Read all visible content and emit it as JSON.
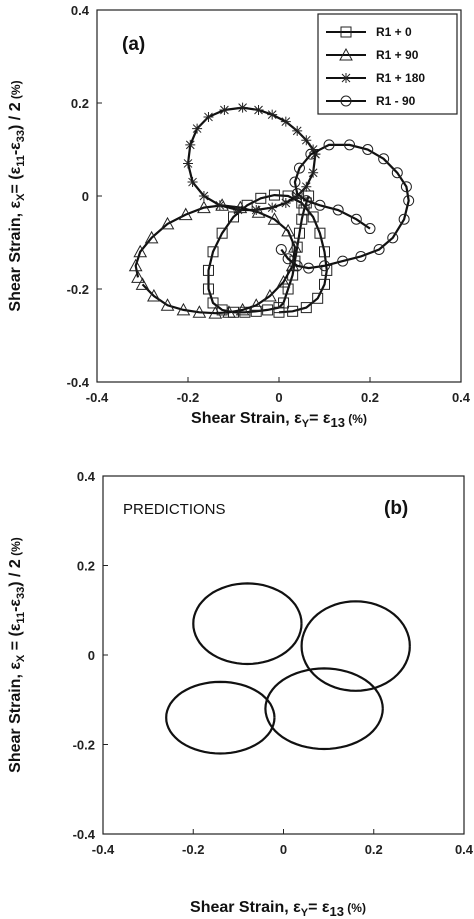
{
  "chart_data": [
    {
      "type": "line",
      "panel_label": "(a)",
      "xlabel": {
        "prefix": "Shear Strain, ",
        "sym": "ε",
        "sub": "Y",
        "eq": "= ",
        "sym2": "ε",
        "sub2": "13",
        "unit": " (%)"
      },
      "ylabel": {
        "prefix": "Shear Strain, ",
        "sym": "ε",
        "sub": "X",
        "eq": "= (",
        "sym2": "ε",
        "sub2": "11",
        "mid": "-",
        "sym3": "ε",
        "sub3": "33",
        "tail": ") / 2",
        "unit": " (%)"
      },
      "xlim": [
        -0.4,
        0.4
      ],
      "ylim": [
        -0.4,
        0.4
      ],
      "xticks": [
        "-0.4",
        "-0.2",
        "0",
        "0.2",
        "0.4"
      ],
      "yticks": [
        "0.4",
        "0.2",
        "0",
        "-0.2",
        "-0.4"
      ],
      "legend_position": "top-right",
      "series": [
        {
          "name": "R1 + 0",
          "marker": "square",
          "x": [
            0.0,
            0.03,
            0.06,
            0.085,
            0.1,
            0.105,
            0.1,
            0.09,
            0.075,
            0.05,
            0.02,
            -0.01,
            -0.04,
            -0.07,
            -0.1,
            -0.125,
            -0.145,
            -0.155,
            -0.155,
            -0.145,
            -0.125,
            -0.1,
            -0.075,
            -0.05,
            -0.025,
            0.0,
            0.01,
            0.02,
            0.03,
            0.035,
            0.04,
            0.045,
            0.05,
            0.055,
            0.06,
            0.065
          ],
          "y": [
            -0.25,
            -0.248,
            -0.24,
            -0.22,
            -0.19,
            -0.16,
            -0.12,
            -0.08,
            -0.045,
            -0.015,
            0.0,
            0.002,
            -0.005,
            -0.02,
            -0.045,
            -0.08,
            -0.12,
            -0.16,
            -0.2,
            -0.23,
            -0.245,
            -0.25,
            -0.25,
            -0.248,
            -0.245,
            -0.24,
            -0.23,
            -0.2,
            -0.17,
            -0.14,
            -0.11,
            -0.08,
            -0.05,
            -0.03,
            -0.015,
            0.0
          ]
        },
        {
          "name": "R1 + 90",
          "marker": "triangle",
          "x": [
            -0.3,
            -0.275,
            -0.245,
            -0.21,
            -0.175,
            -0.14,
            -0.11,
            -0.08,
            -0.05,
            -0.02,
            0.01,
            0.03,
            0.035,
            0.02,
            -0.01,
            -0.045,
            -0.085,
            -0.125,
            -0.165,
            -0.205,
            -0.245,
            -0.28,
            -0.305,
            -0.315,
            -0.31
          ],
          "y": [
            -0.19,
            -0.215,
            -0.235,
            -0.245,
            -0.25,
            -0.252,
            -0.25,
            -0.245,
            -0.235,
            -0.215,
            -0.185,
            -0.15,
            -0.11,
            -0.075,
            -0.05,
            -0.035,
            -0.025,
            -0.02,
            -0.025,
            -0.04,
            -0.06,
            -0.09,
            -0.12,
            -0.15,
            -0.175
          ]
        },
        {
          "name": "R1 + 180",
          "marker": "star",
          "x": [
            0.08,
            0.075,
            0.06,
            0.04,
            0.015,
            -0.015,
            -0.05,
            -0.09,
            -0.13,
            -0.165,
            -0.19,
            -0.2,
            -0.195,
            -0.18,
            -0.155,
            -0.12,
            -0.08,
            -0.045,
            -0.015,
            0.015,
            0.04,
            0.06,
            0.075,
            0.08
          ],
          "y": [
            0.09,
            0.05,
            0.02,
            0.0,
            -0.015,
            -0.025,
            -0.03,
            -0.03,
            -0.02,
            0.0,
            0.03,
            0.07,
            0.11,
            0.145,
            0.17,
            0.185,
            0.19,
            0.185,
            0.175,
            0.16,
            0.14,
            0.12,
            0.1,
            0.09
          ]
        },
        {
          "name": "R1 - 90",
          "marker": "circle",
          "x": [
            0.005,
            0.02,
            0.04,
            0.065,
            0.1,
            0.14,
            0.18,
            0.22,
            0.25,
            0.275,
            0.285,
            0.28,
            0.26,
            0.23,
            0.195,
            0.155,
            0.11,
            0.07,
            0.045,
            0.035,
            0.04,
            0.06,
            0.09,
            0.13,
            0.17,
            0.2
          ],
          "y": [
            -0.115,
            -0.135,
            -0.15,
            -0.155,
            -0.15,
            -0.14,
            -0.13,
            -0.115,
            -0.09,
            -0.05,
            -0.01,
            0.02,
            0.05,
            0.08,
            0.1,
            0.11,
            0.11,
            0.09,
            0.06,
            0.03,
            0.005,
            -0.01,
            -0.02,
            -0.03,
            -0.05,
            -0.07
          ]
        }
      ]
    },
    {
      "type": "line",
      "panel_label": "(b)",
      "annotation": "PREDICTIONS",
      "xlabel": {
        "prefix": "Shear Strain, ",
        "sym": "ε",
        "sub": "Y",
        "eq": "= ",
        "sym2": "ε",
        "sub2": "13",
        "unit": " (%)"
      },
      "ylabel": {
        "prefix": "Shear Strain, ",
        "sym": "ε",
        "sub": "X",
        "eq": " = (",
        "sym2": "ε",
        "sub2": "11",
        "mid": "-",
        "sym3": "ε",
        "sub3": "33",
        "tail": ") / 2",
        "unit": " (%)"
      },
      "xlim": [
        -0.4,
        0.4
      ],
      "ylim": [
        -0.4,
        0.4
      ],
      "xticks": [
        "-0.4",
        "-0.2",
        "0",
        "0.2",
        "0.4"
      ],
      "yticks": [
        "0.4",
        "0.2",
        "0",
        "-0.2",
        "-0.4"
      ],
      "loops": [
        {
          "cx": -0.08,
          "cy": 0.07,
          "rx": 0.12,
          "ry": 0.09,
          "rot": 0
        },
        {
          "cx": 0.16,
          "cy": 0.02,
          "rx": 0.12,
          "ry": 0.1,
          "rot": 0
        },
        {
          "cx": -0.14,
          "cy": -0.14,
          "rx": 0.12,
          "ry": 0.08,
          "rot": 0
        },
        {
          "cx": 0.09,
          "cy": -0.12,
          "rx": 0.13,
          "ry": 0.09,
          "rot": 0
        }
      ]
    }
  ]
}
